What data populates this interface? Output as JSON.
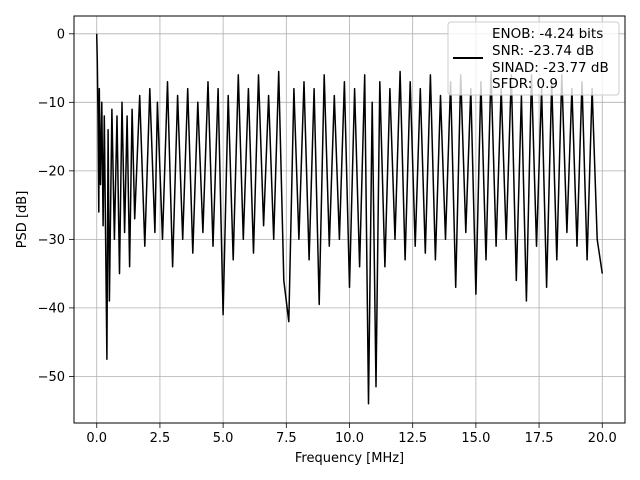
{
  "chart_data": {
    "type": "line",
    "title": "",
    "xlabel": "Frequency [MHz]",
    "ylabel": "PSD [dB]",
    "xlim": [
      -0.9,
      20.9
    ],
    "ylim": [
      -56.8,
      2.6
    ],
    "xticks": [
      0.0,
      2.5,
      5.0,
      7.5,
      10.0,
      12.5,
      15.0,
      17.5,
      20.0
    ],
    "xtick_labels": [
      "0.0",
      "2.5",
      "5.0",
      "7.5",
      "10.0",
      "12.5",
      "15.0",
      "17.5",
      "20.0"
    ],
    "yticks": [
      0,
      -10,
      -20,
      -30,
      -40,
      -50
    ],
    "ytick_labels": [
      "0",
      "−10",
      "−20",
      "−30",
      "−40",
      "−50"
    ],
    "grid": true,
    "line_color": "#000000",
    "legend": {
      "placement": "upper-right",
      "entries": [
        "ENOB: -4.24 bits",
        "SNR: -23.74 dB",
        "SINAD: -23.77 dB",
        "SFDR: 0.9"
      ]
    },
    "series": [
      {
        "x": [
          0.0,
          0.02,
          0.05,
          0.08,
          0.1,
          0.15,
          0.2,
          0.25,
          0.3,
          0.4,
          0.45,
          0.5,
          0.6,
          0.7,
          0.8,
          0.9,
          1.0,
          1.1,
          1.2,
          1.3,
          1.4,
          1.5,
          1.7,
          1.9,
          2.1,
          2.3,
          2.4,
          2.6,
          2.8,
          3.0,
          3.2,
          3.4,
          3.6,
          3.8,
          4.0,
          4.2,
          4.4,
          4.6,
          4.8,
          5.0,
          5.2,
          5.4,
          5.6,
          5.8,
          6.0,
          6.2,
          6.4,
          6.6,
          6.8,
          7.0,
          7.2,
          7.4,
          7.6,
          7.8,
          8.0,
          8.2,
          8.4,
          8.6,
          8.8,
          9.0,
          9.2,
          9.4,
          9.6,
          9.8,
          10.0,
          10.2,
          10.4,
          10.6,
          10.75,
          10.9,
          11.05,
          11.2,
          11.4,
          11.6,
          11.8,
          12.0,
          12.2,
          12.4,
          12.6,
          12.8,
          13.0,
          13.2,
          13.4,
          13.6,
          13.8,
          14.0,
          14.2,
          14.4,
          14.6,
          14.8,
          15.0,
          15.2,
          15.4,
          15.6,
          15.8,
          16.0,
          16.2,
          16.4,
          16.6,
          16.8,
          17.0,
          17.2,
          17.4,
          17.6,
          17.8,
          18.0,
          18.2,
          18.4,
          18.6,
          18.8,
          19.0,
          19.2,
          19.4,
          19.6,
          19.8,
          20.0
        ],
        "y": [
          0.0,
          -4.0,
          -12.0,
          -26.0,
          -8.0,
          -22.0,
          -10.0,
          -28.0,
          -12.0,
          -47.5,
          -14.0,
          -39.0,
          -11.0,
          -30.0,
          -12.0,
          -35.0,
          -10.0,
          -29.0,
          -12.0,
          -34.0,
          -11.0,
          -27.0,
          -9.0,
          -31.0,
          -8.0,
          -29.0,
          -10.0,
          -30.0,
          -7.0,
          -34.0,
          -9.0,
          -30.0,
          -8.0,
          -32.0,
          -10.0,
          -29.0,
          -7.0,
          -31.0,
          -8.0,
          -41.0,
          -9.0,
          -33.0,
          -6.0,
          -30.0,
          -8.0,
          -32.0,
          -6.0,
          -28.0,
          -9.0,
          -30.0,
          -5.5,
          -36.0,
          -42.0,
          -8.0,
          -30.0,
          -7.0,
          -33.0,
          -8.0,
          -39.5,
          -6.0,
          -31.0,
          -9.0,
          -30.0,
          -7.0,
          -37.0,
          -8.0,
          -34.0,
          -6.0,
          -54.0,
          -10.0,
          -51.5,
          -7.0,
          -34.0,
          -8.0,
          -30.0,
          -5.5,
          -33.0,
          -7.0,
          -31.0,
          -8.0,
          -32.0,
          -6.0,
          -33.0,
          -9.0,
          -30.0,
          -7.0,
          -37.0,
          -6.0,
          -29.0,
          -8.0,
          -38.0,
          -7.0,
          -33.0,
          -5.5,
          -31.0,
          -8.0,
          -30.0,
          -6.0,
          -36.0,
          -9.0,
          -39.0,
          -6.0,
          -31.0,
          -8.0,
          -37.0,
          -7.0,
          -33.0,
          -6.0,
          -29.0,
          -8.0,
          -31.0,
          -7.0,
          -33.0,
          -8.0,
          -30.0,
          -35.0
        ]
      }
    ]
  }
}
